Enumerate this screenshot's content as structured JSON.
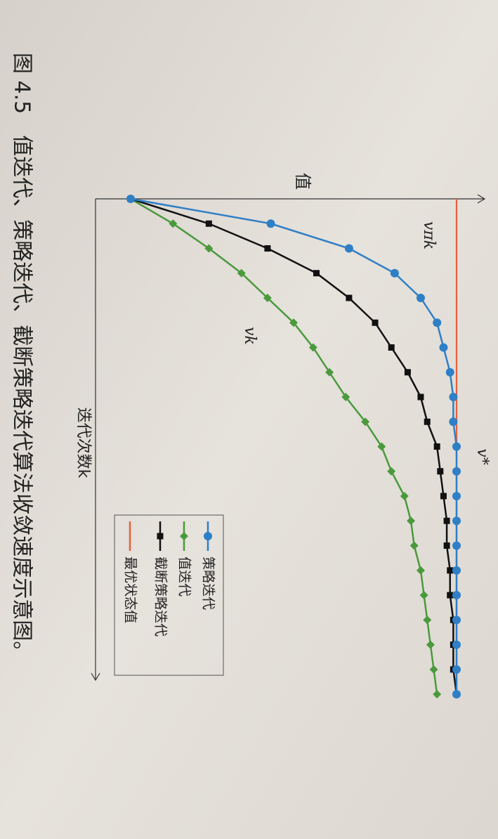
{
  "chart_data": {
    "type": "line",
    "caption": "图 4.5　值迭代、策略迭代、截断策略迭代算法收敛速度示意图。",
    "ylabel": "值",
    "xlabel": "迭代次数k",
    "annotations": [
      "v*",
      "vπk",
      "vk"
    ],
    "x": [
      0,
      1,
      2,
      3,
      4,
      5,
      6,
      7,
      8,
      9,
      10,
      11,
      12,
      13,
      14,
      15,
      16,
      17,
      18,
      19,
      20
    ],
    "xlim": [
      0,
      20
    ],
    "ylim": [
      0,
      1.08
    ],
    "series": [
      {
        "name": "策略迭代",
        "color": "#2f7fc7",
        "marker": "circle",
        "values": [
          0,
          0.43,
          0.67,
          0.81,
          0.89,
          0.94,
          0.96,
          0.98,
          0.99,
          0.99,
          1,
          1,
          1,
          1,
          1,
          1,
          1,
          1,
          1,
          1,
          1
        ]
      },
      {
        "name": "值迭代",
        "color": "#4a9a3c",
        "marker": "diamond",
        "values": [
          0,
          0.13,
          0.24,
          0.34,
          0.42,
          0.5,
          0.56,
          0.61,
          0.66,
          0.72,
          0.77,
          0.8,
          0.84,
          0.86,
          0.87,
          0.89,
          0.9,
          0.91,
          0.92,
          0.93,
          0.94
        ]
      },
      {
        "name": "截断策略迭代",
        "color": "#111111",
        "marker": "square",
        "values": [
          0,
          0.24,
          0.42,
          0.57,
          0.67,
          0.75,
          0.8,
          0.85,
          0.89,
          0.91,
          0.94,
          0.95,
          0.96,
          0.97,
          0.97,
          0.98,
          0.98,
          0.99,
          0.99,
          0.99,
          1
        ]
      },
      {
        "name": "最优状态值",
        "color": "#e8603c",
        "marker": "none",
        "values": [
          1,
          1,
          1,
          1,
          1,
          1,
          1,
          1,
          1,
          1,
          1,
          1,
          1,
          1,
          1,
          1,
          1,
          1,
          1,
          1,
          1
        ]
      }
    ]
  }
}
